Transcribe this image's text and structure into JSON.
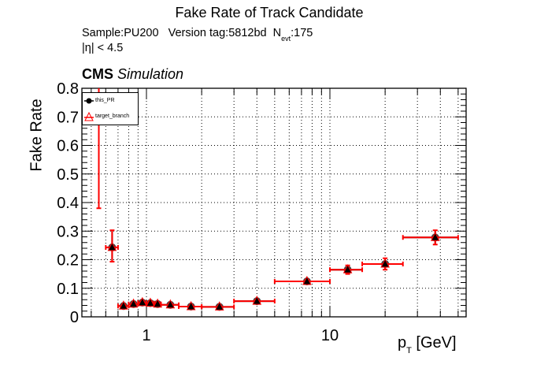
{
  "header": {
    "title": "Fake Rate of Track Candidate",
    "sample_prefix": "Sample:PU200   Version tag:5812bd  N",
    "sample_sub": "evt",
    "sample_suffix": ":175",
    "eta_cut": "|η| < 4.5",
    "cms_label": "CMS",
    "cms_sublabel": "Simulation"
  },
  "axes": {
    "xlabel_main": "p",
    "xlabel_sub": "T",
    "xlabel_unit": " [GeV]",
    "ylabel": "Fake Rate",
    "x_tick_labels": [
      "1",
      "10"
    ],
    "y_tick_labels": [
      "0",
      "0.1",
      "0.2",
      "0.3",
      "0.4",
      "0.5",
      "0.6",
      "0.7",
      "0.8"
    ]
  },
  "legend": {
    "entries": [
      "this_PR",
      "target_branch"
    ]
  },
  "colors": {
    "this_PR": "#000000",
    "target_branch": "#ff0000",
    "grid": "#000000"
  },
  "chart_data": {
    "type": "scatter",
    "title": "Fake Rate of Track Candidate",
    "subtitle": "Sample:PU200 Version tag:5812bd N_evt:175; |η| < 4.5",
    "xlabel": "p_T [GeV]",
    "ylabel": "Fake Rate",
    "xscale": "log",
    "xlim": [
      0.45,
      55
    ],
    "ylim": [
      0,
      0.82
    ],
    "grid": true,
    "legend_position": "top-left",
    "x_bins": [
      [
        0.5,
        0.6
      ],
      [
        0.6,
        0.7
      ],
      [
        0.7,
        0.8
      ],
      [
        0.8,
        0.9
      ],
      [
        0.9,
        1.0
      ],
      [
        1.0,
        1.1
      ],
      [
        1.1,
        1.2
      ],
      [
        1.2,
        1.5
      ],
      [
        1.5,
        2.0
      ],
      [
        2.0,
        3.0
      ],
      [
        3.0,
        5.0
      ],
      [
        5.0,
        10.0
      ],
      [
        10.0,
        15.0
      ],
      [
        15.0,
        25.0
      ],
      [
        25.0,
        50.0
      ]
    ],
    "series": [
      {
        "name": "this_PR",
        "marker": "filled-circle",
        "x": [
          0.55,
          0.65,
          0.75,
          0.85,
          0.95,
          1.05,
          1.15,
          1.35,
          1.75,
          2.5,
          4.0,
          7.5,
          12.5,
          20.0,
          37.5
        ],
        "y": [
          0.9,
          0.243,
          0.038,
          0.045,
          0.05,
          0.048,
          0.045,
          0.042,
          0.036,
          0.035,
          0.055,
          0.124,
          0.165,
          0.185,
          0.278
        ],
        "yerr_low": [
          0.52,
          0.05,
          0.006,
          0.006,
          0.006,
          0.006,
          0.006,
          0.005,
          0.005,
          0.005,
          0.005,
          0.006,
          0.015,
          0.02,
          0.025
        ],
        "yerr_high": [
          0.1,
          0.06,
          0.006,
          0.006,
          0.006,
          0.006,
          0.006,
          0.005,
          0.005,
          0.005,
          0.005,
          0.006,
          0.015,
          0.02,
          0.025
        ]
      },
      {
        "name": "target_branch",
        "marker": "open-triangle",
        "x": [
          0.55,
          0.65,
          0.75,
          0.85,
          0.95,
          1.05,
          1.15,
          1.35,
          1.75,
          2.5,
          4.0,
          7.5,
          12.5,
          20.0,
          37.5
        ],
        "y": [
          0.9,
          0.243,
          0.038,
          0.045,
          0.05,
          0.048,
          0.045,
          0.042,
          0.036,
          0.035,
          0.055,
          0.124,
          0.165,
          0.185,
          0.278
        ],
        "yerr_low": [
          0.52,
          0.05,
          0.006,
          0.006,
          0.006,
          0.006,
          0.006,
          0.005,
          0.005,
          0.005,
          0.005,
          0.006,
          0.015,
          0.02,
          0.025
        ],
        "yerr_high": [
          0.1,
          0.06,
          0.006,
          0.006,
          0.006,
          0.006,
          0.006,
          0.005,
          0.005,
          0.005,
          0.005,
          0.006,
          0.015,
          0.02,
          0.025
        ]
      }
    ]
  }
}
